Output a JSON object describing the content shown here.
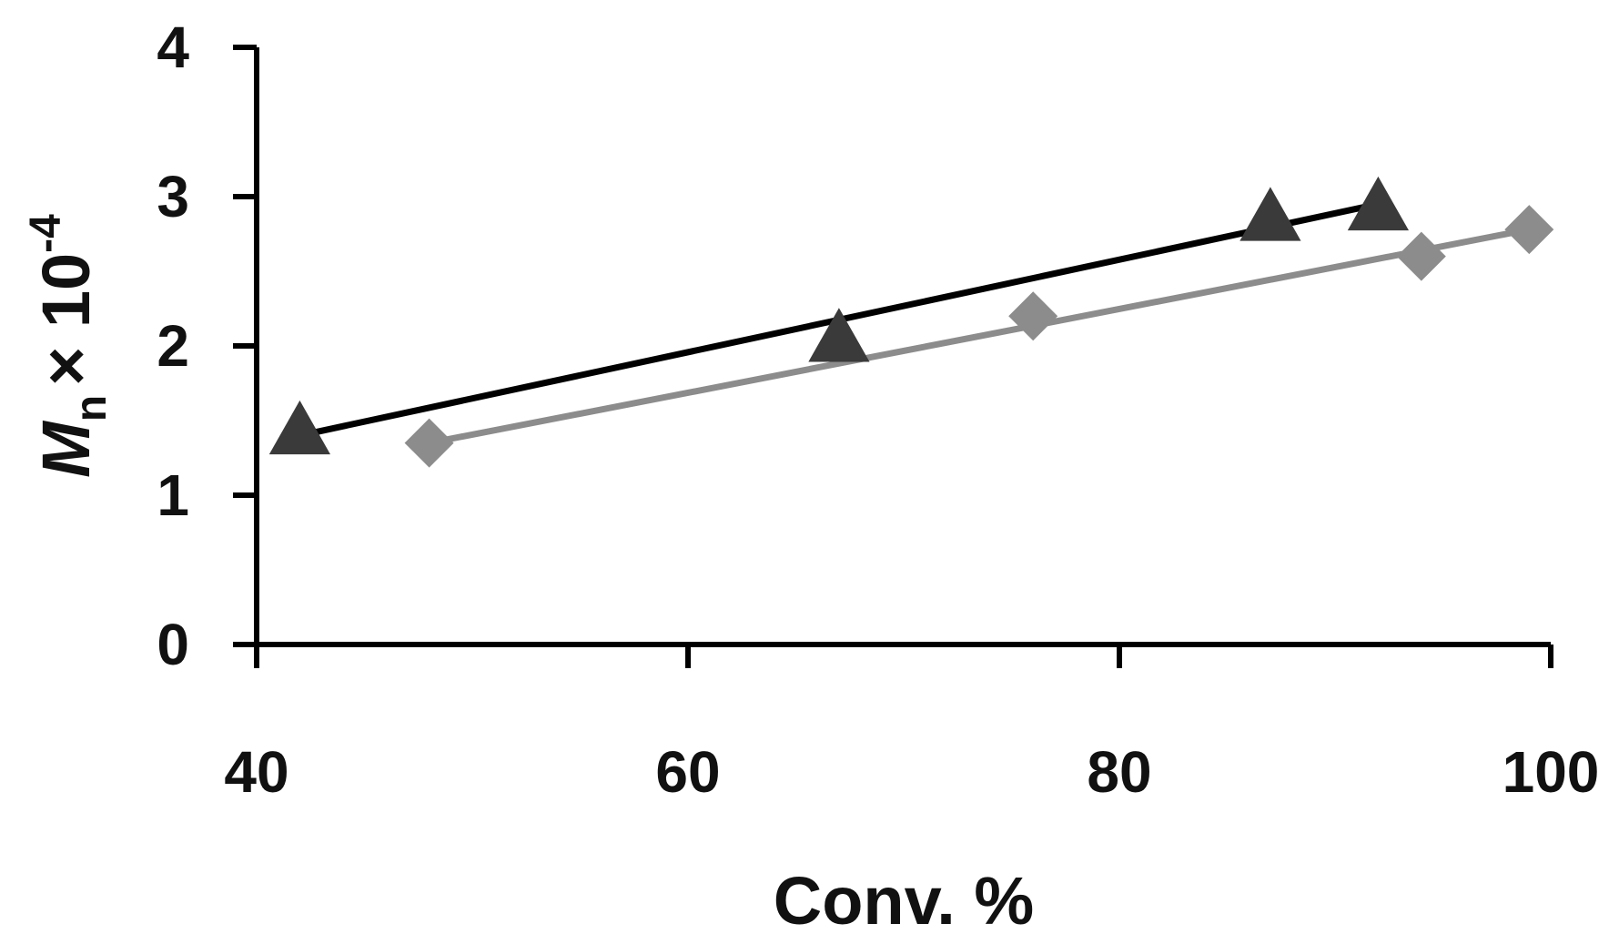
{
  "chart_data": {
    "type": "scatter",
    "xlabel": "Conv. %",
    "ylabel": {
      "symbol": "M",
      "subscript": "n",
      "times": "× 10",
      "exponent": "-4"
    },
    "xlim": [
      40,
      100
    ],
    "ylim": [
      0,
      4
    ],
    "xticks": [
      40,
      60,
      80,
      100
    ],
    "yticks": [
      0,
      1,
      2,
      3,
      4
    ],
    "grid": false,
    "legend": "none",
    "series": [
      {
        "marker": "triangle",
        "color": "#3a3a3a",
        "trend_color": "#000000",
        "x": [
          42,
          67,
          87,
          92
        ],
        "y": [
          1.42,
          2.04,
          2.85,
          2.92
        ],
        "trendline": {
          "x": [
            42,
            92
          ],
          "y": [
            1.4,
            2.95
          ]
        }
      },
      {
        "marker": "diamond",
        "color": "#8c8c8c",
        "trend_color": "#8c8c8c",
        "x": [
          48,
          76,
          94,
          99
        ],
        "y": [
          1.35,
          2.2,
          2.6,
          2.78
        ],
        "trendline": {
          "x": [
            48,
            99
          ],
          "y": [
            1.35,
            2.78
          ]
        }
      }
    ]
  }
}
